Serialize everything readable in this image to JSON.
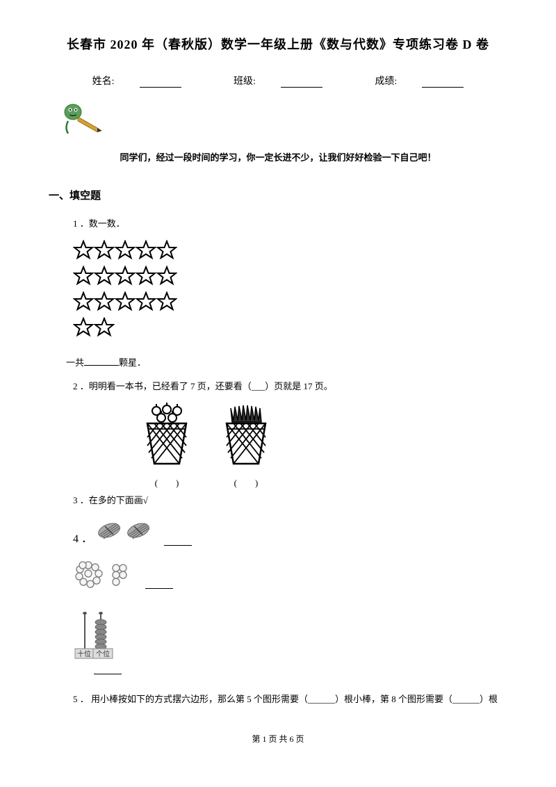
{
  "title": "长春市 2020 年（春秋版）数学一年级上册《数与代数》专项练习卷 D 卷",
  "info": {
    "name_label": "姓名:",
    "class_label": "班级:",
    "score_label": "成绩:"
  },
  "intro": "同学们，经过一段时间的学习，你一定长进不少，让我们好好检验一下自己吧！",
  "section1": {
    "header": "一、填空题",
    "q1": {
      "num": "1 ．数一数．",
      "answer_prefix": "一共",
      "answer_suffix": "颗星．",
      "star_rows": [
        5,
        5,
        5,
        2
      ]
    },
    "q2": {
      "text": "2 ．明明看一本书，已经看了 7 页，还要看（___）页就是 17 页。"
    },
    "q3": {
      "text": "3 ．在多的下面画√",
      "basket1_label": "(　　)",
      "basket2_label": "(　　)"
    },
    "q4": {
      "num": "4 ．"
    },
    "q5": {
      "text": "5 ． 用小棒按如下的方式摆六边形，那么第 5 个图形需要（______）根小棒，第 8 个图形需要（______）根"
    },
    "abacus": {
      "tens_label": "十位",
      "ones_label": "个位"
    }
  },
  "footer": "第 1 页 共 6 页",
  "colors": {
    "text": "#000000",
    "background": "#ffffff",
    "pencil_green": "#2d7a2d",
    "pencil_yellow": "#d4a030"
  }
}
